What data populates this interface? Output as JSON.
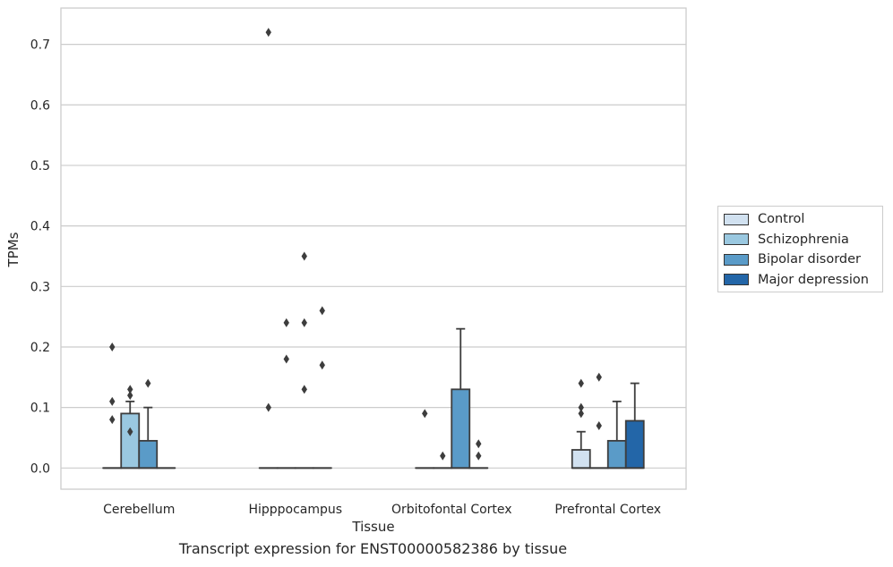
{
  "caption": "Transcript expression for ENST00000582386 by tissue",
  "chart_data": {
    "type": "boxplot",
    "xlabel": "Tissue",
    "ylabel": "TPMs",
    "ylim": [
      -0.035,
      0.76
    ],
    "yticks": [
      0.0,
      0.1,
      0.2,
      0.3,
      0.4,
      0.5,
      0.6,
      0.7
    ],
    "ytick_labels": [
      "0.0",
      "0.1",
      "0.2",
      "0.3",
      "0.4",
      "0.5",
      "0.6",
      "0.7"
    ],
    "grid": "horizontal",
    "legend_position": "right",
    "categories": [
      "Cerebellum",
      "Hipppocampus",
      "Orbitofontal Cortex",
      "Prefrontal Cortex"
    ],
    "series": [
      {
        "name": "Control",
        "color": "#d1e1f0",
        "boxes": [
          {
            "q1": 0,
            "median": 0,
            "q3": 0,
            "whisker_low": 0,
            "whisker_high": 0,
            "outliers": [
              0.08,
              0.11,
              0.2
            ]
          },
          {
            "q1": 0,
            "median": 0,
            "q3": 0,
            "whisker_low": 0,
            "whisker_high": 0,
            "outliers": [
              0.1,
              0.72
            ]
          },
          {
            "q1": 0,
            "median": 0,
            "q3": 0,
            "whisker_low": 0,
            "whisker_high": 0,
            "outliers": [
              0.09
            ]
          },
          {
            "q1": 0,
            "median": 0,
            "q3": 0.03,
            "whisker_low": 0,
            "whisker_high": 0.06,
            "outliers": [
              0.09,
              0.1,
              0.14
            ]
          }
        ]
      },
      {
        "name": "Schizophrenia",
        "color": "#9ac8e0",
        "boxes": [
          {
            "q1": 0,
            "median": 0,
            "q3": 0.09,
            "whisker_low": 0,
            "whisker_high": 0.11,
            "outliers": [
              0.06,
              0.12,
              0.13
            ]
          },
          {
            "q1": 0,
            "median": 0,
            "q3": 0,
            "whisker_low": 0,
            "whisker_high": 0,
            "outliers": [
              0.18,
              0.24
            ]
          },
          {
            "q1": 0,
            "median": 0,
            "q3": 0,
            "whisker_low": 0,
            "whisker_high": 0,
            "outliers": [
              0.02
            ]
          },
          {
            "q1": 0,
            "median": 0,
            "q3": 0,
            "whisker_low": 0,
            "whisker_high": 0,
            "outliers": [
              0.07,
              0.15
            ]
          }
        ]
      },
      {
        "name": "Bipolar disorder",
        "color": "#5a9bc8",
        "boxes": [
          {
            "q1": 0,
            "median": 0,
            "q3": 0.045,
            "whisker_low": 0,
            "whisker_high": 0.1,
            "outliers": [
              0.14
            ]
          },
          {
            "q1": 0,
            "median": 0,
            "q3": 0,
            "whisker_low": 0,
            "whisker_high": 0,
            "outliers": [
              0.13,
              0.24,
              0.35
            ]
          },
          {
            "q1": 0,
            "median": 0,
            "q3": 0.13,
            "whisker_low": 0,
            "whisker_high": 0.23,
            "outliers": []
          },
          {
            "q1": 0,
            "median": 0,
            "q3": 0.045,
            "whisker_low": 0,
            "whisker_high": 0.11,
            "outliers": []
          }
        ]
      },
      {
        "name": "Major depression",
        "color": "#2366a8",
        "boxes": [
          {
            "q1": 0,
            "median": 0,
            "q3": 0,
            "whisker_low": 0,
            "whisker_high": 0,
            "outliers": []
          },
          {
            "q1": 0,
            "median": 0,
            "q3": 0,
            "whisker_low": 0,
            "whisker_high": 0,
            "outliers": [
              0.17,
              0.26
            ]
          },
          {
            "q1": 0,
            "median": 0,
            "q3": 0,
            "whisker_low": 0,
            "whisker_high": 0,
            "outliers": [
              0.02,
              0.04
            ]
          },
          {
            "q1": 0,
            "median": 0,
            "q3": 0.078,
            "whisker_low": 0,
            "whisker_high": 0.14,
            "outliers": []
          }
        ]
      }
    ]
  }
}
